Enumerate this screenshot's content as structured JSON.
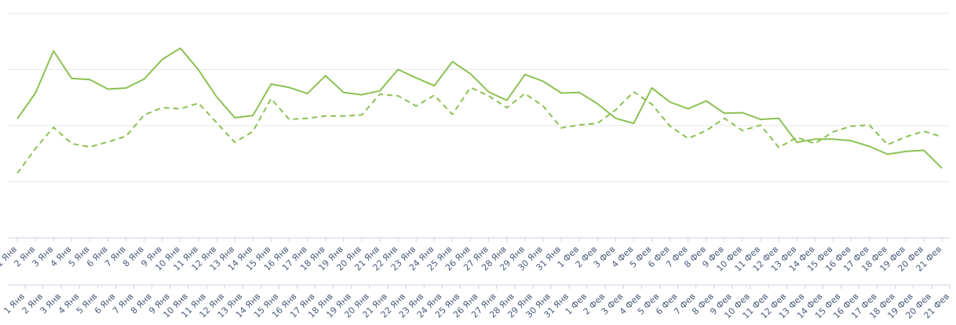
{
  "chart_data": {
    "type": "line",
    "categories": [
      "1 Янв",
      "2 Янв",
      "3 Янв",
      "4 Янв",
      "5 Янв",
      "6 Янв",
      "7 Янв",
      "8 Янв",
      "9 Янв",
      "10 Янв",
      "11 Янв",
      "12 Янв",
      "13 Янв",
      "14 Янв",
      "15 Янв",
      "16 Янв",
      "17 Янв",
      "18 Янв",
      "19 Янв",
      "20 Янв",
      "21 Янв",
      "22 Янв",
      "23 Янв",
      "24 Янв",
      "25 Янв",
      "26 Янв",
      "27 Янв",
      "28 Янв",
      "29 Янв",
      "30 Янв",
      "31 Янв",
      "1 Фев",
      "2 Фев",
      "3 Фев",
      "4 Фев",
      "5 Фев",
      "6 Фев",
      "7 Фев",
      "8 Фев",
      "9 Фев",
      "10 Фев",
      "11 Фев",
      "12 Фев",
      "13 Фев",
      "14 Фев",
      "15 Фев",
      "16 Фев",
      "17 Фев",
      "18 Фев",
      "19 Фев",
      "20 Фев",
      "21 Фев"
    ],
    "series": [
      {
        "style": "solid",
        "values": [
          2.12,
          2.58,
          3.33,
          2.84,
          2.82,
          2.65,
          2.67,
          2.83,
          3.18,
          3.38,
          2.99,
          2.51,
          2.14,
          2.18,
          2.74,
          2.68,
          2.57,
          2.89,
          2.59,
          2.55,
          2.62,
          3.0,
          2.85,
          2.71,
          3.14,
          2.92,
          2.6,
          2.45,
          2.91,
          2.79,
          2.58,
          2.59,
          2.39,
          2.13,
          2.04,
          2.67,
          2.42,
          2.3,
          2.44,
          2.22,
          2.23,
          2.11,
          2.13,
          1.7,
          1.76,
          1.76,
          1.73,
          1.63,
          1.49,
          1.54,
          1.56,
          1.24
        ]
      },
      {
        "style": "dashed",
        "values": [
          1.15,
          1.59,
          1.97,
          1.68,
          1.62,
          1.71,
          1.81,
          2.19,
          2.32,
          2.3,
          2.4,
          2.05,
          1.7,
          1.9,
          2.48,
          2.11,
          2.13,
          2.17,
          2.17,
          2.19,
          2.56,
          2.53,
          2.35,
          2.54,
          2.2,
          2.68,
          2.53,
          2.32,
          2.57,
          2.35,
          1.96,
          2.01,
          2.04,
          2.28,
          2.6,
          2.38,
          1.99,
          1.77,
          1.91,
          2.13,
          1.91,
          2.01,
          1.61,
          1.79,
          1.68,
          1.89,
          1.99,
          2.01,
          1.66,
          1.8,
          1.9,
          1.8
        ]
      }
    ],
    "ylim": [
      0,
      4
    ],
    "grid": true,
    "legend": "none",
    "line_color": "#8cc152",
    "grid_color": "#e6e6e6",
    "axis_color": "#c8d2e6"
  }
}
